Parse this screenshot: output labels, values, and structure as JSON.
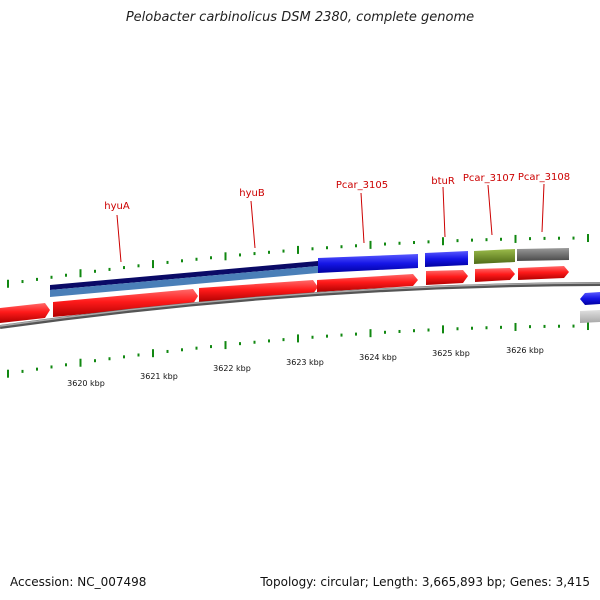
{
  "title": "Pelobacter carbinolicus DSM 2380, complete genome",
  "footer": {
    "accession": "Accession: NC_007498",
    "summary": "Topology: circular; Length: 3,665,893 bp; Genes: 3,415"
  },
  "scale_labels": [
    "3620 kbp",
    "3621 kbp",
    "3622 kbp",
    "3623 kbp",
    "3624 kbp",
    "3625 kbp",
    "3626 kbp"
  ],
  "gene_labels": [
    "hyuA",
    "hyuB",
    "Pcar_3105",
    "btuR",
    "Pcar_3107",
    "Pcar_3108"
  ],
  "colors": {
    "gene": "#ff1a1a",
    "gene_label": "#cc0000",
    "tick": "#118811",
    "backbone": "#888888",
    "cds_navy": "#0a0a66",
    "cds_steel": "#4a7fb8",
    "cds_blue": "#1515e6",
    "cds_olive": "#6b8e23",
    "cds_gray": "#666666"
  }
}
